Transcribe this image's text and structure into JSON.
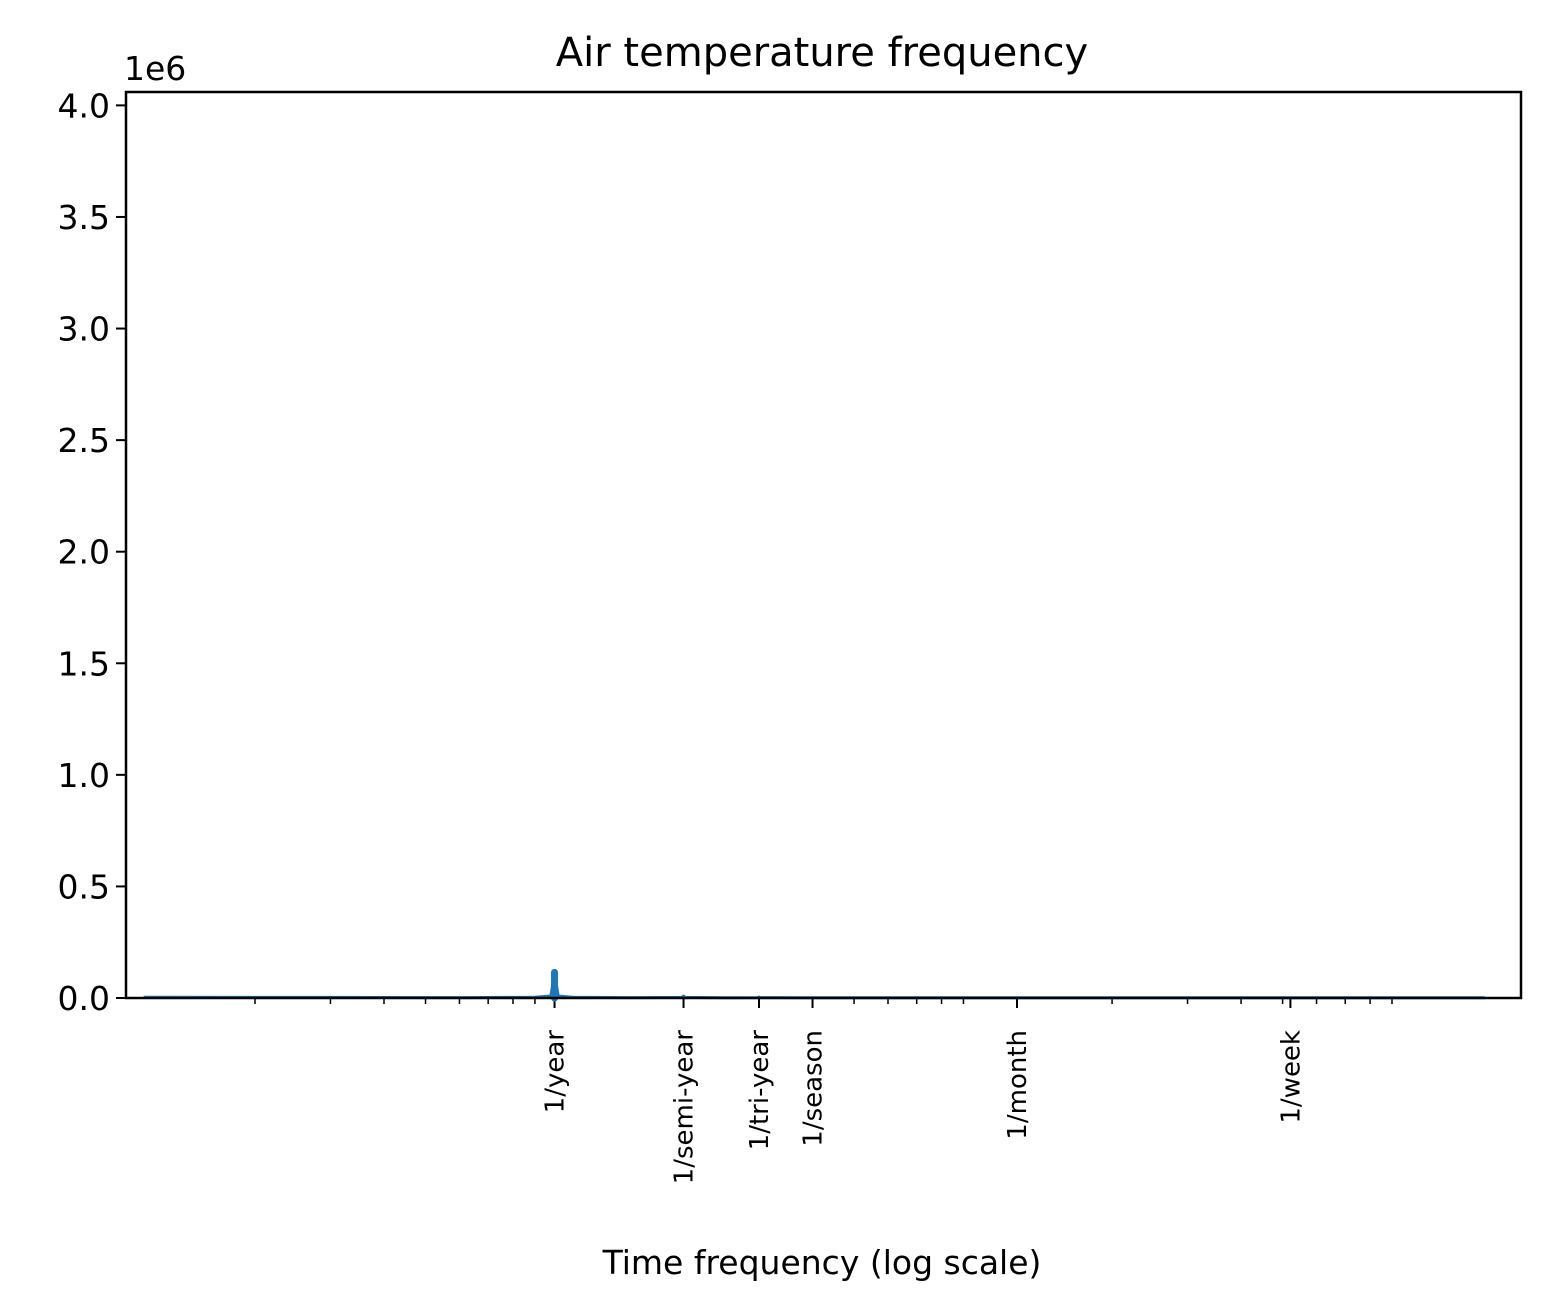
{
  "chart_data": {
    "type": "line",
    "title": "Air temperature frequency",
    "xlabel": "Time frequency (log scale)",
    "ylabel": "",
    "x_scale": "log",
    "y_offset_label": "1e6",
    "ylim": [
      0,
      4060000
    ],
    "xlim": [
      0.1,
      180
    ],
    "y_ticks": [
      0,
      500000,
      1000000,
      1500000,
      2000000,
      2500000,
      3000000,
      3500000,
      4000000
    ],
    "y_tick_labels": [
      "0.0",
      "0.5",
      "1.0",
      "1.5",
      "2.0",
      "2.5",
      "3.0",
      "3.5",
      "4.0"
    ],
    "x_ticks": [
      {
        "value": 1.0,
        "label": "1/year"
      },
      {
        "value": 2.0,
        "label": "1/semi-year"
      },
      {
        "value": 3.0,
        "label": "1/tri-year"
      },
      {
        "value": 4.0,
        "label": "1/season"
      },
      {
        "value": 12.0,
        "label": "1/month"
      },
      {
        "value": 52.14,
        "label": "1/week"
      }
    ],
    "grid": false,
    "series": [
      {
        "color": "#1f77b4",
        "x": [
          0.11,
          0.3,
          0.6,
          0.9,
          0.98,
          0.99,
          1.0,
          1.01,
          1.02,
          1.1,
          1.5,
          1.98,
          2.0,
          2.02,
          2.5,
          2.98,
          3.0,
          3.02,
          4.0,
          6.0,
          12.0,
          30.0,
          52.0,
          100.0,
          148.0
        ],
        "y": [
          3000,
          2500,
          2000,
          3000,
          9000,
          60000,
          115000,
          60000,
          9000,
          3000,
          2000,
          2500,
          8000,
          2500,
          1500,
          2000,
          4000,
          2000,
          1500,
          1500,
          1500,
          1500,
          1500,
          1500,
          1500
        ]
      }
    ]
  }
}
